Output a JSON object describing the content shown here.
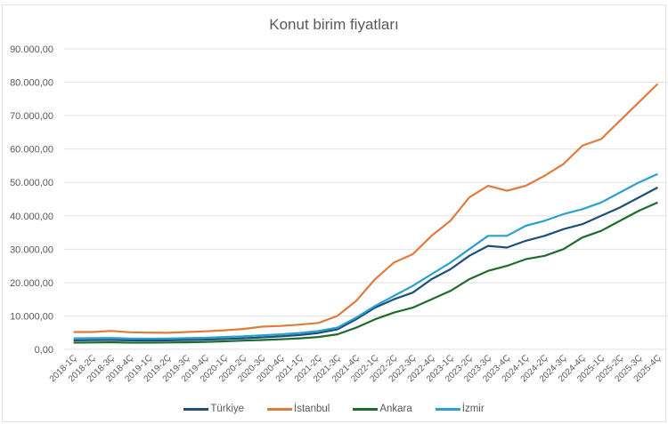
{
  "chart_data": {
    "type": "line",
    "title": "Konut birim fiyatları",
    "xlabel": "",
    "ylabel": "",
    "ylim": [
      0,
      90000
    ],
    "yticks": [
      "0,00",
      "10.000,00",
      "20.000,00",
      "30.000,00",
      "40.000,00",
      "50.000,00",
      "60.000,00",
      "70.000,00",
      "80.000,00",
      "90.000,00"
    ],
    "grid": true,
    "legend_position": "bottom",
    "categories": [
      "2018-1Ç",
      "2018-2Ç",
      "2018-3Ç",
      "2018-4Ç",
      "2019-1Ç",
      "2019-2Ç",
      "2019-3Ç",
      "2019-4Ç",
      "2020-1Ç",
      "2020-2Ç",
      "2020-3Ç",
      "2020-4Ç",
      "2021-1Ç",
      "2021-2Ç",
      "2021-3Ç",
      "2021-4Ç",
      "2022-1Ç",
      "2022-2Ç",
      "2022-3Ç",
      "2022-4Ç",
      "2023-1Ç",
      "2023-2Ç",
      "2023-3Ç",
      "2023-4Ç",
      "2024-1Ç",
      "2024-2Ç",
      "2024-3Ç",
      "2024-4Ç",
      "2025-1Ç",
      "2025-2Ç",
      "2025-3Ç",
      "2025-4Ç"
    ],
    "series": [
      {
        "name": "Türkiye",
        "color": "#1f4e79",
        "values": [
          2700,
          2750,
          2800,
          2700,
          2650,
          2700,
          2800,
          2900,
          3100,
          3300,
          3600,
          3900,
          4300,
          4900,
          6000,
          9000,
          12500,
          15000,
          17000,
          21000,
          24000,
          28000,
          31000,
          30500,
          32500,
          34000,
          36000,
          37500,
          40000,
          42500,
          45500,
          48500
        ]
      },
      {
        "name": "İstanbul",
        "color": "#e07b39",
        "values": [
          5200,
          5200,
          5500,
          5100,
          5000,
          4950,
          5200,
          5400,
          5700,
          6100,
          6800,
          7000,
          7400,
          7900,
          10000,
          14500,
          21000,
          26000,
          28500,
          34000,
          38500,
          45500,
          49000,
          47500,
          49000,
          52000,
          55500,
          61000,
          63000,
          68500,
          74000,
          79500
        ]
      },
      {
        "name": "Ankara",
        "color": "#1e6b2e",
        "values": [
          2000,
          2050,
          2100,
          2000,
          2000,
          2050,
          2100,
          2200,
          2400,
          2600,
          2800,
          3000,
          3300,
          3700,
          4500,
          6500,
          9000,
          11000,
          12500,
          15000,
          17500,
          21000,
          23500,
          25000,
          27000,
          28000,
          30000,
          33500,
          35500,
          38500,
          41500,
          44000
        ]
      },
      {
        "name": "İzmir",
        "color": "#2aa0d0",
        "values": [
          3300,
          3350,
          3400,
          3250,
          3200,
          3250,
          3350,
          3450,
          3700,
          3900,
          4200,
          4500,
          4900,
          5500,
          6500,
          9500,
          13000,
          16000,
          19000,
          22500,
          26000,
          30000,
          34000,
          34000,
          37000,
          38500,
          40500,
          42000,
          44000,
          47000,
          50000,
          52500
        ]
      }
    ]
  },
  "legend": {
    "items": [
      {
        "label": "Türkiye",
        "color": "#1f4e79"
      },
      {
        "label": "İstanbul",
        "color": "#e07b39"
      },
      {
        "label": "Ankara",
        "color": "#1e6b2e"
      },
      {
        "label": "İzmir",
        "color": "#2aa0d0"
      }
    ]
  }
}
